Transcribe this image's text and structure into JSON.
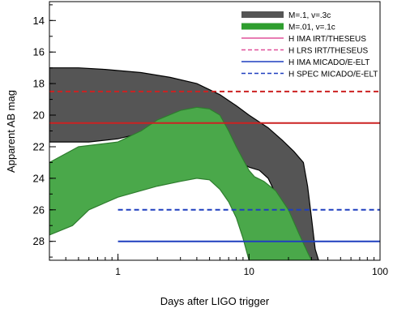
{
  "chart_data": {
    "type": "area",
    "xlabel": "Days after LIGO trigger",
    "ylabel": "Apparent AB mag",
    "x_scale": "log",
    "y_inverted": true,
    "xlim": [
      0.3,
      100
    ],
    "ylim": [
      29.2,
      12.8
    ],
    "x_ticks": [
      1,
      10,
      100
    ],
    "x_tick_labels": [
      "1",
      "10",
      "100"
    ],
    "y_ticks": [
      14,
      16,
      18,
      20,
      22,
      24,
      26,
      28
    ],
    "y_tick_labels": [
      "14",
      "16",
      "18",
      "20",
      "22",
      "24",
      "26",
      "28"
    ],
    "grid": false,
    "legend_position": "top-right",
    "bands": [
      {
        "name": "M=.1, v=.3c",
        "color": "#555555",
        "edge_color": "#000000",
        "upper": [
          [
            0.3,
            17.0
          ],
          [
            0.5,
            17.0
          ],
          [
            0.8,
            17.1
          ],
          [
            1.5,
            17.3
          ],
          [
            2.5,
            17.6
          ],
          [
            4.0,
            18.0
          ],
          [
            6.0,
            18.7
          ],
          [
            8.0,
            19.4
          ],
          [
            10.0,
            20.0
          ],
          [
            14.0,
            20.8
          ],
          [
            18.0,
            21.6
          ],
          [
            22.0,
            22.3
          ],
          [
            26.0,
            23.0
          ],
          [
            28.0,
            24.5
          ],
          [
            30.0,
            26.5
          ],
          [
            32.0,
            28.5
          ],
          [
            34.0,
            29.2
          ]
        ],
        "lower": [
          [
            0.3,
            21.7
          ],
          [
            0.6,
            21.7
          ],
          [
            1.0,
            21.5
          ],
          [
            2.0,
            20.9
          ],
          [
            3.0,
            20.6
          ],
          [
            4.0,
            20.5
          ],
          [
            5.0,
            20.5
          ],
          [
            6.0,
            21.2
          ],
          [
            8.0,
            22.8
          ],
          [
            10.0,
            23.3
          ],
          [
            12.0,
            23.5
          ],
          [
            14.0,
            24.0
          ],
          [
            16.0,
            25.0
          ],
          [
            19.0,
            26.2
          ],
          [
            23.0,
            27.3
          ],
          [
            27.0,
            28.5
          ],
          [
            30.0,
            29.2
          ]
        ]
      },
      {
        "name": "M=.01, v=.1c",
        "color": "#4aa84a",
        "edge_color": "#2e7d2e",
        "upper": [
          [
            0.3,
            23.0
          ],
          [
            0.5,
            22.0
          ],
          [
            1.0,
            21.7
          ],
          [
            1.5,
            21.0
          ],
          [
            2.0,
            20.3
          ],
          [
            3.0,
            19.7
          ],
          [
            4.0,
            19.5
          ],
          [
            5.0,
            19.6
          ],
          [
            6.0,
            20.0
          ],
          [
            7.0,
            21.0
          ],
          [
            8.0,
            22.0
          ],
          [
            9.0,
            22.8
          ],
          [
            10.0,
            23.5
          ],
          [
            11.0,
            23.9
          ],
          [
            13.0,
            24.2
          ],
          [
            16.0,
            24.8
          ],
          [
            20.0,
            26.0
          ],
          [
            24.0,
            27.5
          ],
          [
            28.0,
            28.7
          ],
          [
            30.0,
            29.2
          ]
        ],
        "lower": [
          [
            0.3,
            27.6
          ],
          [
            0.45,
            27.0
          ],
          [
            0.6,
            26.0
          ],
          [
            1.0,
            25.2
          ],
          [
            2.0,
            24.5
          ],
          [
            3.0,
            24.2
          ],
          [
            4.0,
            24.0
          ],
          [
            5.0,
            24.1
          ],
          [
            6.0,
            24.7
          ],
          [
            7.0,
            25.5
          ],
          [
            8.0,
            26.5
          ],
          [
            9.0,
            27.8
          ],
          [
            10.0,
            29.2
          ]
        ]
      }
    ],
    "lines": [
      {
        "name": "H IMA IRT/THESEUS",
        "y": 20.5,
        "x_start": 0.3,
        "style": "solid",
        "color": "#cc2222"
      },
      {
        "name": "H LRS IRT/THESEUS",
        "y": 18.5,
        "x_start": 0.3,
        "style": "dashed",
        "color": "#cc2222"
      },
      {
        "name": "H IMA MICADO/E-ELT",
        "y": 28.0,
        "x_start": 1.0,
        "style": "solid",
        "color": "#1f3fbf"
      },
      {
        "name": "H SPEC MICADO/E-ELT",
        "y": 26.0,
        "x_start": 1.0,
        "style": "dashed",
        "color": "#1f3fbf"
      }
    ]
  },
  "legend": {
    "entries": [
      {
        "label": "M=.1, v=.3c",
        "kind": "patch",
        "color": "#555555"
      },
      {
        "label": "M=.01, v=.1c",
        "kind": "patch",
        "color": "#2e9e2e"
      },
      {
        "label": "H IMA IRT/THESEUS",
        "kind": "line",
        "style": "solid",
        "color": "#e0509a"
      },
      {
        "label": "H LRS IRT/THESEUS",
        "kind": "line",
        "style": "dashed",
        "color": "#e0509a"
      },
      {
        "label": "H IMA MICADO/E-ELT",
        "kind": "line",
        "style": "solid",
        "color": "#1f3fbf"
      },
      {
        "label": "H SPEC MICADO/E-ELT",
        "kind": "line",
        "style": "dashed",
        "color": "#1f3fbf"
      }
    ]
  }
}
